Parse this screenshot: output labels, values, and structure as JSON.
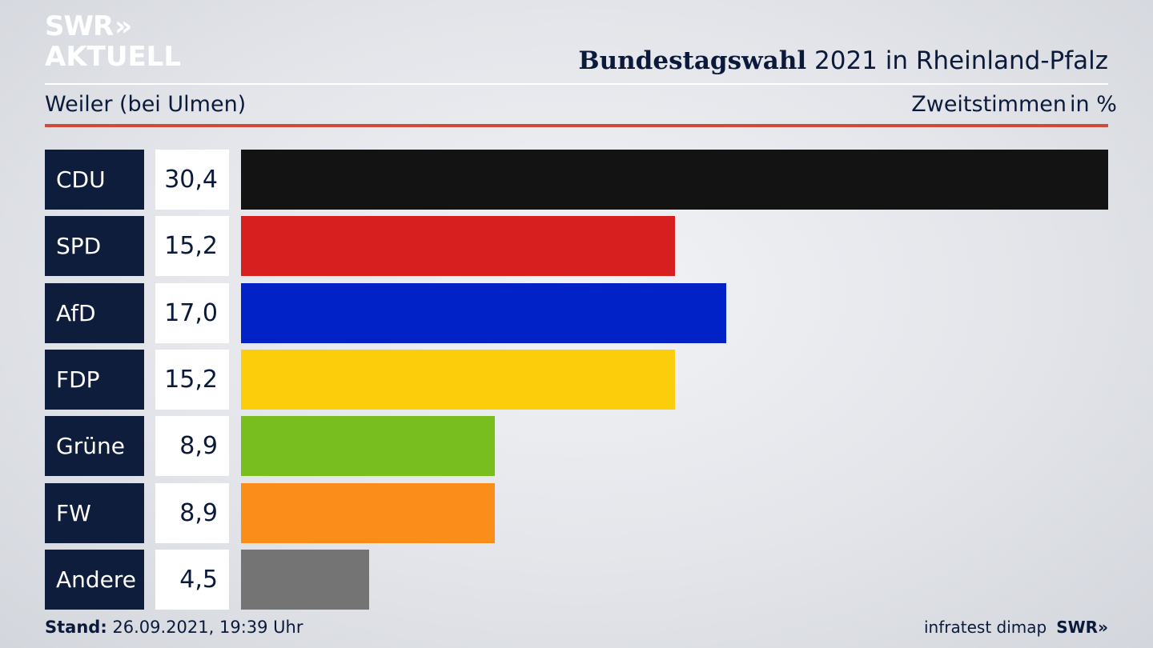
{
  "brand": {
    "logo_line1": "SWR",
    "logo_chevrons": "»",
    "logo_line2": "AKTUELL"
  },
  "header": {
    "title_bold": "Bundestagswahl",
    "title_rest": " 2021 in Rheinland-Pfalz"
  },
  "subheader": {
    "place": "Weiler (bei Ulmen)",
    "metric": "Zweitstimmen",
    "unit": "in %"
  },
  "chart_data": {
    "type": "bar",
    "orientation": "horizontal",
    "categories": [
      "CDU",
      "SPD",
      "AfD",
      "FDP",
      "Grüne",
      "FW",
      "Andere"
    ],
    "values": [
      30.4,
      15.2,
      17.0,
      15.2,
      8.9,
      8.9,
      4.5
    ],
    "value_labels": [
      "30,4",
      "15,2",
      "17,0",
      "15,2",
      "8,9",
      "8,9",
      "4,5"
    ],
    "colors": [
      "#131313",
      "#d71f1f",
      "#0022c6",
      "#fccd0a",
      "#77be1e",
      "#fb8e1a",
      "#747475"
    ],
    "xlim": [
      0,
      30.4
    ],
    "grid": false,
    "legend": "none"
  },
  "footer": {
    "stand_label": "Stand:",
    "stand_value": " 26.09.2021, 19:39 Uhr",
    "source": "infratest dimap",
    "brand_small": "SWR»"
  }
}
